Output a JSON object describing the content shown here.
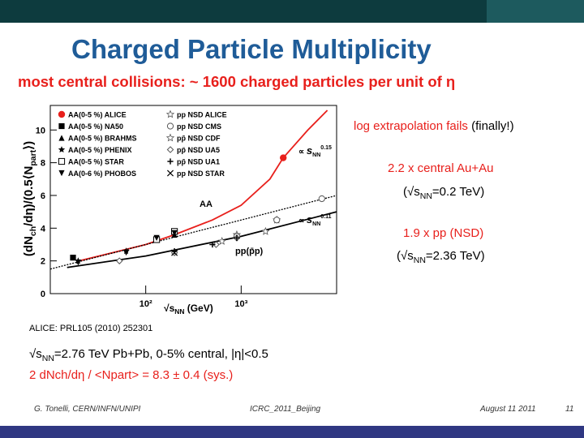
{
  "slide": {
    "title": "Charged Particle Multiplicity",
    "subtitle": "most central collisions: ~ 1600 charged particles per unit of η",
    "notes": [
      [
        "log extrapolation fails",
        " (finally!)"
      ],
      [
        "2.2 x central Au+Au"
      ],
      [
        "(√s",
        "NN",
        "=0.2 TeV)"
      ],
      [
        "1.9 x pp (NSD)"
      ],
      [
        "(√s",
        "NN",
        "=2.36 TeV)"
      ]
    ],
    "reference": "ALICE: PRL105 (2010) 252301",
    "condition": [
      "√s",
      "NN",
      "=2.76 TeV Pb+Pb, 0-5% central, |η|<0.5"
    ],
    "result": "2 dNch/dη / <Npart> = 8.3 ± 0.4 (sys.)",
    "footer": {
      "author": "G. Tonelli, CERN/INFN/UNIPI",
      "event": "ICRC_2011_Beijing",
      "date": "August 11 2011",
      "page": "11"
    }
  },
  "chart_data": {
    "type": "scatter",
    "y_label": [
      "(dN",
      "ch",
      "/dη)/(0.5⟨N",
      "part",
      "⟩)"
    ],
    "x_label": [
      "√s",
      "NN",
      " (GeV)"
    ],
    "xscale": "log",
    "xlim": [
      10,
      10000
    ],
    "xticks": [
      {
        "value": 100,
        "label": "10²"
      },
      {
        "value": 1000,
        "label": "10³"
      }
    ],
    "ylim": [
      0,
      11.5
    ],
    "yticks": [
      0,
      2,
      4,
      6,
      8,
      10
    ],
    "annotations": [
      [
        "AA"
      ],
      [
        "pp(p̄p)"
      ],
      [
        "∝ ",
        "s",
        "NN",
        "0.15"
      ],
      [
        "∝ ",
        "s",
        "NN",
        "0.11"
      ]
    ],
    "series": [
      {
        "name": "AA(0-5 %) ALICE",
        "color": "#e8201c",
        "marker": "circle",
        "x": [
          2760
        ],
        "values": [
          8.3
        ]
      },
      {
        "name": "AA(0-5 %) NA50",
        "color": "#000000",
        "marker": "square",
        "x": [
          17.3
        ],
        "values": [
          2.2
        ]
      },
      {
        "name": "AA(0-5 %) BRAHMS",
        "color": "#000000",
        "marker": "triangle",
        "x": [
          200
        ],
        "values": [
          3.6
        ]
      },
      {
        "name": "AA(0-5 %) PHENIX",
        "color": "#000000",
        "marker": "star",
        "x": [
          19.6,
          62.4,
          130,
          200
        ],
        "values": [
          2.0,
          2.6,
          3.3,
          3.6
        ]
      },
      {
        "name": "AA(0-5 %) STAR",
        "color": "#000000",
        "marker": "open-square",
        "x": [
          130,
          200
        ],
        "values": [
          3.3,
          3.8
        ]
      },
      {
        "name": "AA(0-6 %) PHOBOS",
        "color": "#000000",
        "marker": "down-triangle",
        "x": [
          19.6,
          62.4,
          130,
          200
        ],
        "values": [
          1.9,
          2.5,
          3.4,
          3.7
        ]
      },
      {
        "name": "pp NSD ALICE",
        "color": "#555555",
        "marker": "open-star",
        "x": [
          900,
          2360
        ],
        "values": [
          3.6,
          4.5
        ]
      },
      {
        "name": "pp NSD CMS",
        "color": "#555555",
        "marker": "open-circle",
        "x": [
          900,
          2360,
          7000
        ],
        "values": [
          3.5,
          4.5,
          5.8
        ]
      },
      {
        "name": "pp̄ NSD CDF",
        "color": "#555555",
        "marker": "open-star",
        "x": [
          630,
          1800
        ],
        "values": [
          3.2,
          3.8
        ]
      },
      {
        "name": "pp̄ NSD UA5",
        "color": "#555555",
        "marker": "open-diamond",
        "x": [
          53,
          200,
          546,
          900
        ],
        "values": [
          2.0,
          2.5,
          3.0,
          3.4
        ]
      },
      {
        "name": "pp̄ NSD UA1",
        "color": "#000000",
        "marker": "plus",
        "x": [
          200,
          500,
          900
        ],
        "values": [
          2.6,
          3.0,
          3.4
        ]
      },
      {
        "name": "pp NSD STAR",
        "color": "#000000",
        "marker": "x-mark",
        "x": [
          200
        ],
        "values": [
          2.5
        ]
      }
    ],
    "lines": [
      {
        "color": "#e8201c",
        "dash": false,
        "x": [
          20,
          100,
          200,
          500,
          1000,
          2000,
          2760,
          5000,
          8000
        ],
        "values": [
          2.0,
          3.0,
          3.6,
          4.5,
          5.4,
          7.0,
          8.3,
          10.0,
          11.2
        ]
      },
      {
        "color": "#000000",
        "dash": true,
        "x": [
          10,
          10000
        ],
        "values": [
          1.5,
          6.0
        ]
      },
      {
        "color": "#000000",
        "dash": false,
        "x": [
          15,
          100,
          1000,
          10000
        ],
        "values": [
          1.6,
          2.3,
          3.5,
          5.0
        ]
      }
    ]
  }
}
